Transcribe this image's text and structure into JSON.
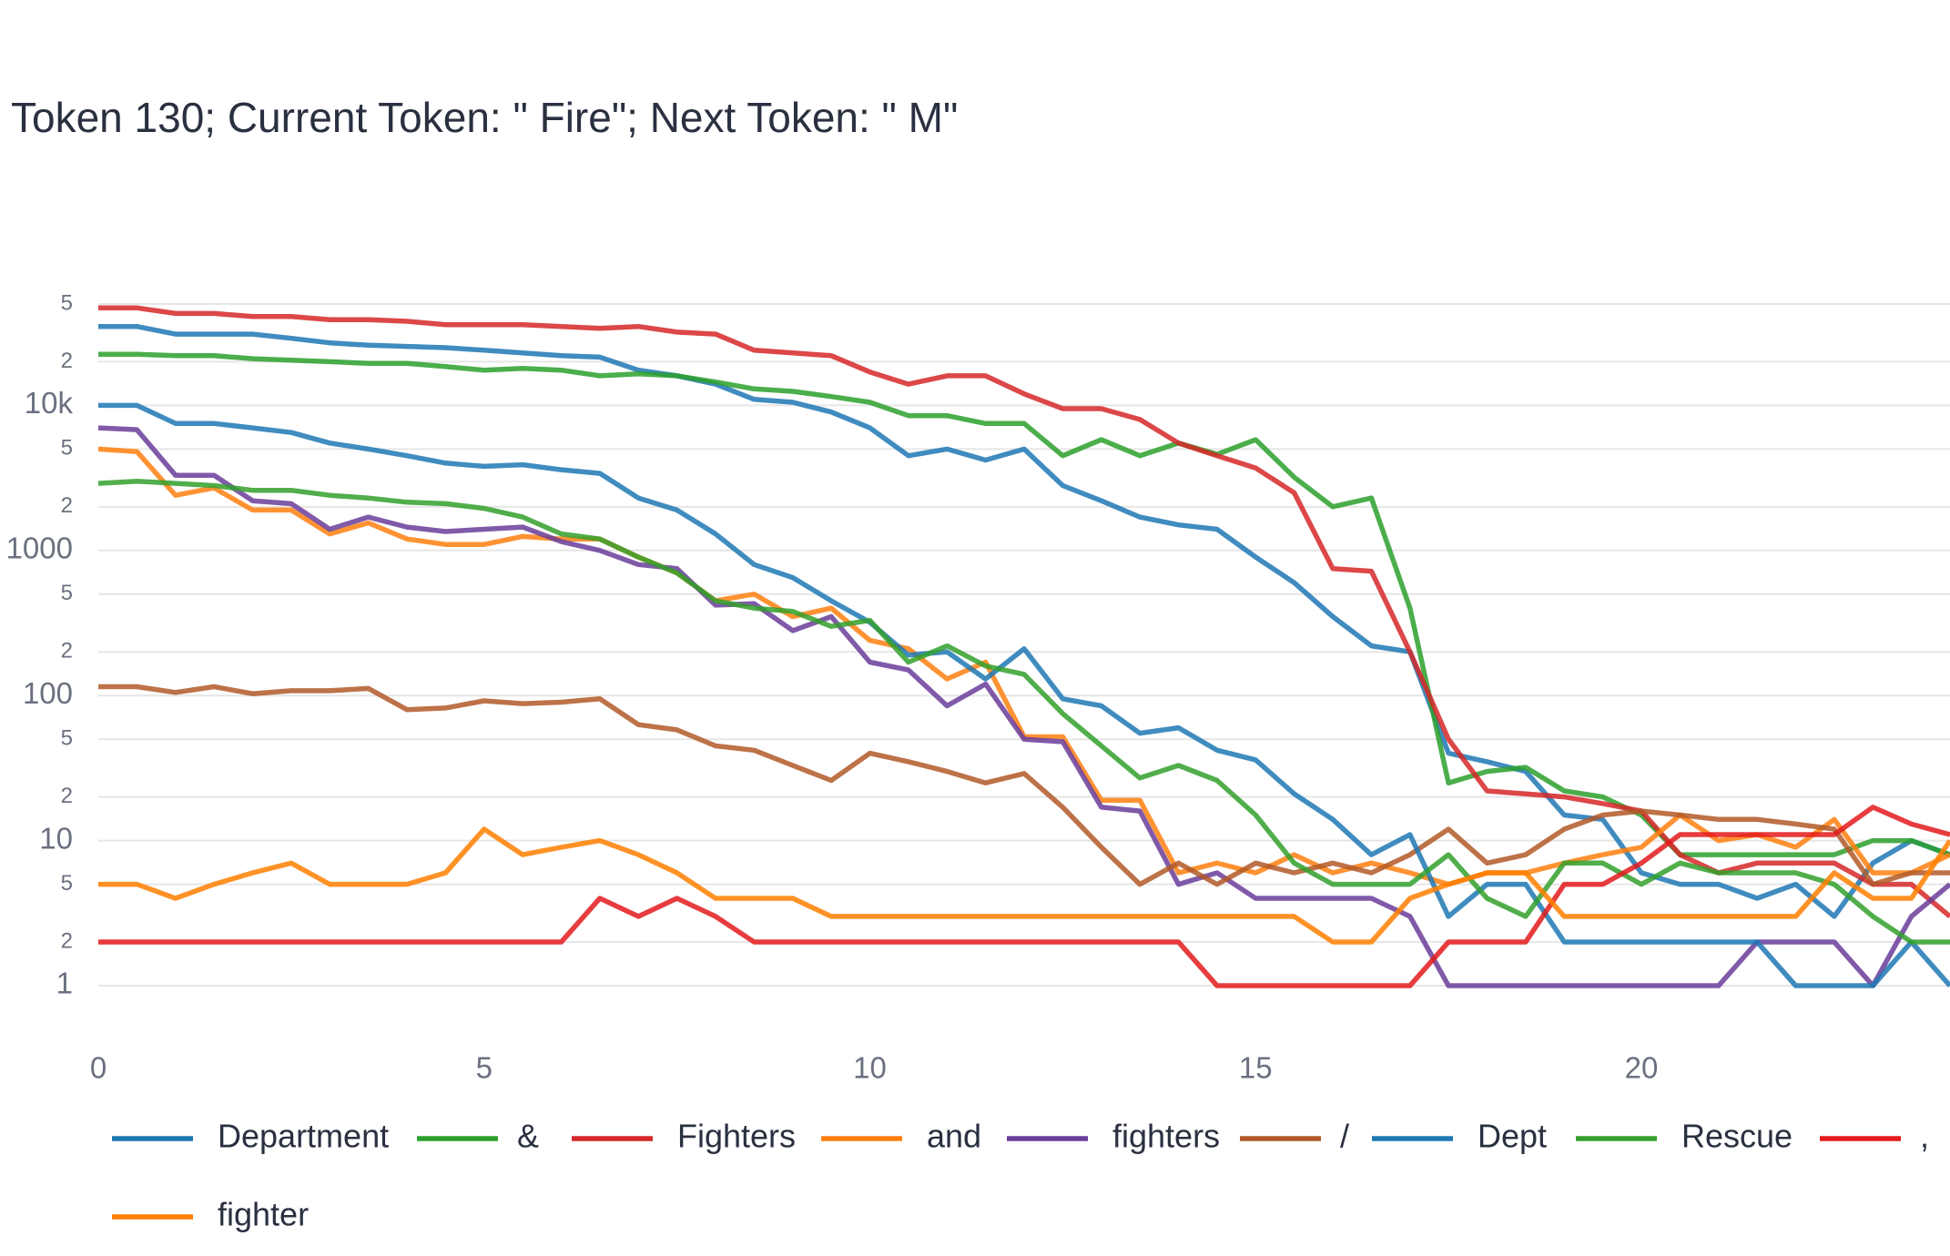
{
  "chart_data": {
    "type": "line",
    "title": "Token 130; Current Token: \" Fire\"; Next Token: \" M\"",
    "log_y": true,
    "grid": true,
    "legend": "bottom",
    "x": [
      0,
      0.5,
      1,
      1.5,
      2,
      2.5,
      3,
      3.5,
      4,
      4.5,
      5,
      5.5,
      6,
      6.5,
      7,
      7.5,
      8,
      8.5,
      9,
      9.5,
      10,
      10.5,
      11,
      11.5,
      12,
      12.5,
      13,
      13.5,
      14,
      14.5,
      15,
      15.5,
      16,
      16.5,
      17,
      17.5,
      18,
      18.5,
      19,
      19.5,
      20,
      20.5,
      21,
      21.5,
      22,
      22.5,
      23,
      23.5,
      24
    ],
    "xlim": [
      0,
      24
    ],
    "xticks": [
      0,
      5,
      10,
      15,
      20
    ],
    "ylim": [
      1,
      50000
    ],
    "yticks": [
      1,
      2,
      5,
      10,
      {
        "value": 20,
        "label": "2"
      },
      {
        "value": 50,
        "label": "5"
      },
      100,
      {
        "value": 200,
        "label": "2"
      },
      {
        "value": 500,
        "label": "5"
      },
      1000,
      {
        "value": 2000,
        "label": "2"
      },
      {
        "value": 5000,
        "label": "5"
      },
      {
        "value": 10000,
        "label": "10k"
      },
      {
        "value": 20000,
        "label": "2"
      },
      {
        "value": 50000,
        "label": "5"
      }
    ],
    "series": [
      {
        "name": "Department",
        "color": "#1f77b4",
        "values": [
          35000,
          35000,
          31000,
          31000,
          31000,
          29000,
          27000,
          26000,
          25500,
          25000,
          24000,
          23000,
          22000,
          21500,
          17500,
          16000,
          14000,
          11000,
          10500,
          9000,
          7000,
          4500,
          5000,
          4200,
          5000,
          2800,
          2200,
          1700,
          1500,
          1400,
          900,
          600,
          350,
          220,
          200,
          40,
          35,
          30,
          15,
          14,
          6,
          5,
          5,
          4,
          5,
          3,
          7,
          10,
          8
        ]
      },
      {
        "name": "&",
        "color": "#2ca02c",
        "values": [
          22500,
          22500,
          22000,
          22000,
          21000,
          20500,
          20000,
          19500,
          19500,
          18500,
          17500,
          18000,
          17500,
          16000,
          16500,
          16000,
          14500,
          13000,
          12500,
          11500,
          10500,
          8500,
          8500,
          7500,
          7500,
          4500,
          5800,
          4500,
          5500,
          4600,
          5800,
          3200,
          2000,
          2300,
          400,
          25,
          30,
          32,
          22,
          20,
          15,
          8,
          8,
          8,
          8,
          8,
          10,
          10,
          8
        ]
      },
      {
        "name": "Fighters",
        "color": "#d62728",
        "values": [
          47000,
          47000,
          43000,
          43000,
          41000,
          41000,
          39000,
          39000,
          38000,
          36000,
          36000,
          36000,
          35000,
          34000,
          35000,
          32000,
          31000,
          24000,
          23000,
          22000,
          17000,
          14000,
          16000,
          16000,
          12000,
          9500,
          9500,
          8000,
          5500,
          4500,
          3700,
          2500,
          750,
          720,
          200,
          50,
          22,
          21,
          20,
          18,
          16,
          8,
          6,
          7,
          7,
          7,
          5,
          5,
          3
        ]
      },
      {
        "name": "and",
        "color": "#ff7f0e",
        "values": [
          5000,
          4800,
          2400,
          2700,
          1900,
          1900,
          1300,
          1550,
          1200,
          1100,
          1100,
          1250,
          1200,
          1200,
          900,
          700,
          450,
          500,
          350,
          400,
          240,
          210,
          130,
          170,
          52,
          52,
          19,
          19,
          6,
          7,
          6,
          8,
          6,
          7,
          6,
          5,
          6,
          6,
          7,
          8,
          9,
          15,
          10,
          11,
          9,
          14,
          6,
          6,
          8
        ]
      },
      {
        "name": "fighters",
        "color": "#6a3d9a",
        "values": [
          7000,
          6800,
          3300,
          3300,
          2200,
          2100,
          1400,
          1700,
          1450,
          1350,
          1400,
          1450,
          1150,
          1000,
          800,
          750,
          420,
          430,
          280,
          350,
          170,
          150,
          85,
          120,
          50,
          48,
          17,
          16,
          5,
          6,
          4,
          4,
          4,
          4,
          3,
          1,
          1,
          1,
          1,
          1,
          1,
          1,
          1,
          2,
          2,
          2,
          1,
          3,
          5
        ]
      },
      {
        "name": "/",
        "color": "#b15928",
        "values": [
          115,
          115,
          105,
          115,
          103,
          108,
          108,
          112,
          80,
          82,
          92,
          88,
          90,
          95,
          63,
          58,
          45,
          42,
          33,
          26,
          40,
          35,
          30,
          25,
          29,
          17,
          9,
          5,
          7,
          5,
          7,
          6,
          7,
          6,
          8,
          12,
          7,
          8,
          12,
          15,
          16,
          15,
          14,
          14,
          13,
          12,
          5,
          6,
          6
        ]
      },
      {
        "name": "Dept",
        "color": "#1f78b4",
        "values": [
          10000,
          10000,
          7500,
          7500,
          7000,
          6500,
          5500,
          5000,
          4500,
          4000,
          3800,
          3900,
          3600,
          3400,
          2300,
          1900,
          1300,
          800,
          650,
          450,
          320,
          190,
          200,
          130,
          210,
          95,
          85,
          55,
          60,
          42,
          36,
          21,
          14,
          8,
          11,
          3,
          5,
          5,
          2,
          2,
          2,
          2,
          2,
          2,
          1,
          1,
          1,
          2,
          1
        ]
      },
      {
        "name": "Rescue",
        "color": "#33a02c",
        "values": [
          2900,
          3000,
          2900,
          2800,
          2600,
          2600,
          2400,
          2300,
          2150,
          2100,
          1950,
          1700,
          1300,
          1200,
          900,
          700,
          450,
          400,
          380,
          300,
          330,
          170,
          220,
          160,
          140,
          75,
          45,
          27,
          33,
          26,
          15,
          7,
          5,
          5,
          5,
          8,
          4,
          3,
          7,
          7,
          5,
          7,
          6,
          6,
          6,
          5,
          3,
          2,
          2
        ]
      },
      {
        "name": ",",
        "color": "#e31a1c",
        "values": [
          2,
          2,
          2,
          2,
          2,
          2,
          2,
          2,
          2,
          2,
          2,
          2,
          2,
          4,
          3,
          4,
          3,
          2,
          2,
          2,
          2,
          2,
          2,
          2,
          2,
          2,
          2,
          2,
          2,
          1,
          1,
          1,
          1,
          1,
          1,
          2,
          2,
          2,
          5,
          5,
          7,
          11,
          11,
          11,
          11,
          11,
          17,
          13,
          11
        ]
      },
      {
        "name": "fighter",
        "color": "#ff7f00",
        "values": [
          5,
          5,
          4,
          5,
          6,
          7,
          5,
          5,
          5,
          6,
          12,
          8,
          9,
          10,
          8,
          6,
          4,
          4,
          4,
          3,
          3,
          3,
          3,
          3,
          3,
          3,
          3,
          3,
          3,
          3,
          3,
          3,
          2,
          2,
          4,
          5,
          6,
          6,
          3,
          3,
          3,
          3,
          3,
          3,
          3,
          6,
          4,
          4,
          10
        ]
      }
    ]
  }
}
